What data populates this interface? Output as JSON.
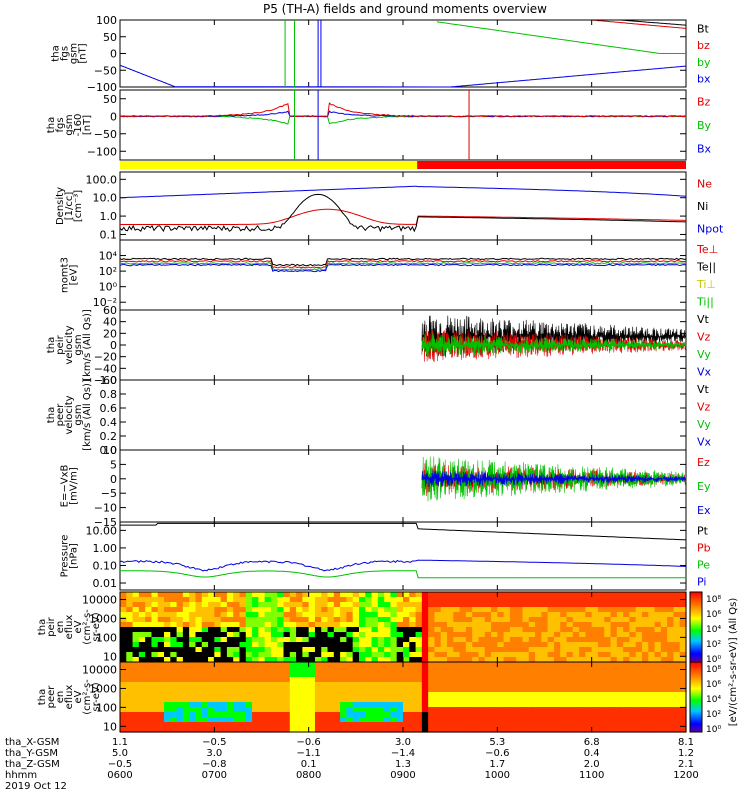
{
  "title": "P5 (TH-A) fields and ground moments overview",
  "chart_data": {
    "type": "line",
    "title": "P5 (TH-A) fields and ground moments overview",
    "x_range_hhmm": [
      "0600",
      "1200"
    ],
    "panels": [
      {
        "id": "fgs",
        "ylabel": [
          "tha",
          "fgs",
          "gsm",
          "[nT]"
        ],
        "ylim": [
          -100,
          100
        ],
        "yticks": [
          100,
          50,
          0,
          -50,
          -100
        ],
        "ytick_labels": [
          "100",
          "50",
          "0",
          "−50",
          "−100"
        ],
        "legend": [
          {
            "label": "Bt",
            "color": "#000000"
          },
          {
            "label": "bz",
            "color": "#e00000"
          },
          {
            "label": "by",
            "color": "#00c000"
          },
          {
            "label": "bx",
            "color": "#0000e0"
          }
        ]
      },
      {
        "id": "fgs_dsl",
        "ylabel": [
          "tha",
          "fgs",
          "gsm",
          "-160",
          "[nT]"
        ],
        "ylim": [
          -125,
          75
        ],
        "yticks": [
          50,
          0,
          -50,
          -100
        ],
        "ytick_labels": [
          "50",
          "0",
          "−50",
          "−100"
        ],
        "legend": [
          {
            "label": "Bz",
            "color": "#e00000"
          },
          {
            "label": "By",
            "color": "#00c000"
          },
          {
            "label": "Bx",
            "color": "#0000e0"
          }
        ]
      },
      {
        "id": "density",
        "ylabel": [
          "Density",
          "[1/cc]",
          "[cm⁻³]"
        ],
        "log": true,
        "ylim": [
          0.05,
          250
        ],
        "yticks": [
          100,
          10,
          1,
          0.1
        ],
        "ytick_labels": [
          "100.0",
          "10.0",
          "1.0",
          "0.1"
        ],
        "legend": [
          {
            "label": "Ne",
            "color": "#e00000"
          },
          {
            "label": "Ni",
            "color": "#000000"
          },
          {
            "label": "Npot",
            "color": "#0000e0"
          }
        ]
      },
      {
        "id": "temp",
        "ylabel": [
          "momt3",
          "[eV]"
        ],
        "log": true,
        "ylim": [
          0.001,
          1000000
        ],
        "yticks": [
          10000,
          100,
          1,
          0.01
        ],
        "ytick_labels": [
          "10⁴",
          "10²",
          "10⁰",
          "10⁻²"
        ],
        "legend": [
          {
            "label": "Te⊥",
            "color": "#e00000"
          },
          {
            "label": "Te||",
            "color": "#000000"
          },
          {
            "label": "Ti⊥",
            "color": "#c8c800"
          },
          {
            "label": "Ti||",
            "color": "#00c000"
          }
        ]
      },
      {
        "id": "peir_vel",
        "ylabel": [
          "tha",
          "peir",
          "velocity",
          "gsm",
          "[km/s (All Qs)]"
        ],
        "ylim": [
          -60,
          60
        ],
        "yticks": [
          60,
          40,
          20,
          0,
          -20,
          -40,
          -60
        ],
        "ytick_labels": [
          "60",
          "40",
          "20",
          "0",
          "−20",
          "−40",
          "−60"
        ],
        "legend": [
          {
            "label": "Vt",
            "color": "#000000"
          },
          {
            "label": "Vz",
            "color": "#e00000"
          },
          {
            "label": "Vy",
            "color": "#00c000"
          },
          {
            "label": "Vx",
            "color": "#0000e0"
          }
        ]
      },
      {
        "id": "peer_vel",
        "ylabel": [
          "tha",
          "peer",
          "velocity",
          "gsm",
          "[km/s (All Qs)]"
        ],
        "ylim": [
          0,
          1
        ],
        "yticks": [
          1.0,
          0.8,
          0.6,
          0.4,
          0.2,
          0.0
        ],
        "ytick_labels": [
          "1.0",
          "0.8",
          "0.6",
          "0.4",
          "0.2",
          "0.0"
        ],
        "legend": [
          {
            "label": "Vt",
            "color": "#000000"
          },
          {
            "label": "Vz",
            "color": "#e00000"
          },
          {
            "label": "Vy",
            "color": "#00c000"
          },
          {
            "label": "Vx",
            "color": "#0000e0"
          }
        ]
      },
      {
        "id": "efield",
        "ylabel": [
          "E=−VxB",
          "[mV/m]"
        ],
        "ylim": [
          -15,
          10
        ],
        "yticks": [
          10,
          5,
          0,
          -5,
          -10,
          -15
        ],
        "ytick_labels": [
          "10",
          "5",
          "0",
          "−5",
          "−10",
          "−15"
        ],
        "legend": [
          {
            "label": "Ez",
            "color": "#e00000"
          },
          {
            "label": "Ey",
            "color": "#00c000"
          },
          {
            "label": "Ex",
            "color": "#0000e0"
          }
        ]
      },
      {
        "id": "pressure",
        "ylabel": [
          "Pressure",
          "[nPa]"
        ],
        "log": true,
        "ylim": [
          0.004,
          30
        ],
        "yticks": [
          10,
          1,
          0.1,
          0.01
        ],
        "ytick_labels": [
          "10.00",
          "1.00",
          "0.10",
          "0.01"
        ],
        "legend": [
          {
            "label": "Pt",
            "color": "#000000"
          },
          {
            "label": "Pb",
            "color": "#e00000"
          },
          {
            "label": "Pe",
            "color": "#00c000"
          },
          {
            "label": "Pi",
            "color": "#0000e0"
          }
        ]
      },
      {
        "id": "peir_spec",
        "type": "heatmap",
        "ylabel": [
          "tha",
          "peir",
          "en",
          "eflux",
          "eV",
          "(cm²-s-",
          "sr-eV)"
        ],
        "log": true,
        "ylim": [
          5,
          25000
        ],
        "yticks": [
          10000,
          1000,
          100,
          10
        ],
        "ytick_labels": [
          "10000",
          "1000",
          "100",
          "10"
        ],
        "colorbar_ticks": [
          "10⁸",
          "10⁶",
          "10⁴",
          "10²",
          "10⁰"
        ]
      },
      {
        "id": "peer_spec",
        "type": "heatmap",
        "ylabel": [
          "tha",
          "peer",
          "en",
          "eflux",
          "eV",
          "(cm²-s-",
          "sr-eV)"
        ],
        "log": true,
        "ylim": [
          5,
          25000
        ],
        "yticks": [
          10000,
          1000,
          100,
          10
        ],
        "ytick_labels": [
          "10000",
          "1000",
          "100",
          "10"
        ],
        "colorbar_ticks": [
          "10⁸",
          "10⁶",
          "10⁴",
          "10²",
          "10⁰"
        ]
      }
    ],
    "colorbar_label": "[eV/(cm²-s-sr-eV)] (All Qs)",
    "footer": {
      "row_labels": [
        "tha_X-GSM",
        "tha_Y-GSM",
        "tha_Z-GSM",
        "hhmm",
        "2019 Oct 12"
      ],
      "columns": [
        [
          "1.1",
          "5.0",
          "−0.5",
          "0600"
        ],
        [
          "−0.5",
          "3.0",
          "−0.8",
          "0700"
        ],
        [
          "−0.6",
          "−1.1",
          "0.1",
          "0800"
        ],
        [
          "3.0",
          "−1.4",
          "1.3",
          "0900"
        ],
        [
          "5.3",
          "−0.6",
          "1.7",
          "1000"
        ],
        [
          "6.8",
          "0.4",
          "2.0",
          "1100"
        ],
        [
          "8.1",
          "1.2",
          "2.1",
          "1200"
        ]
      ]
    }
  }
}
